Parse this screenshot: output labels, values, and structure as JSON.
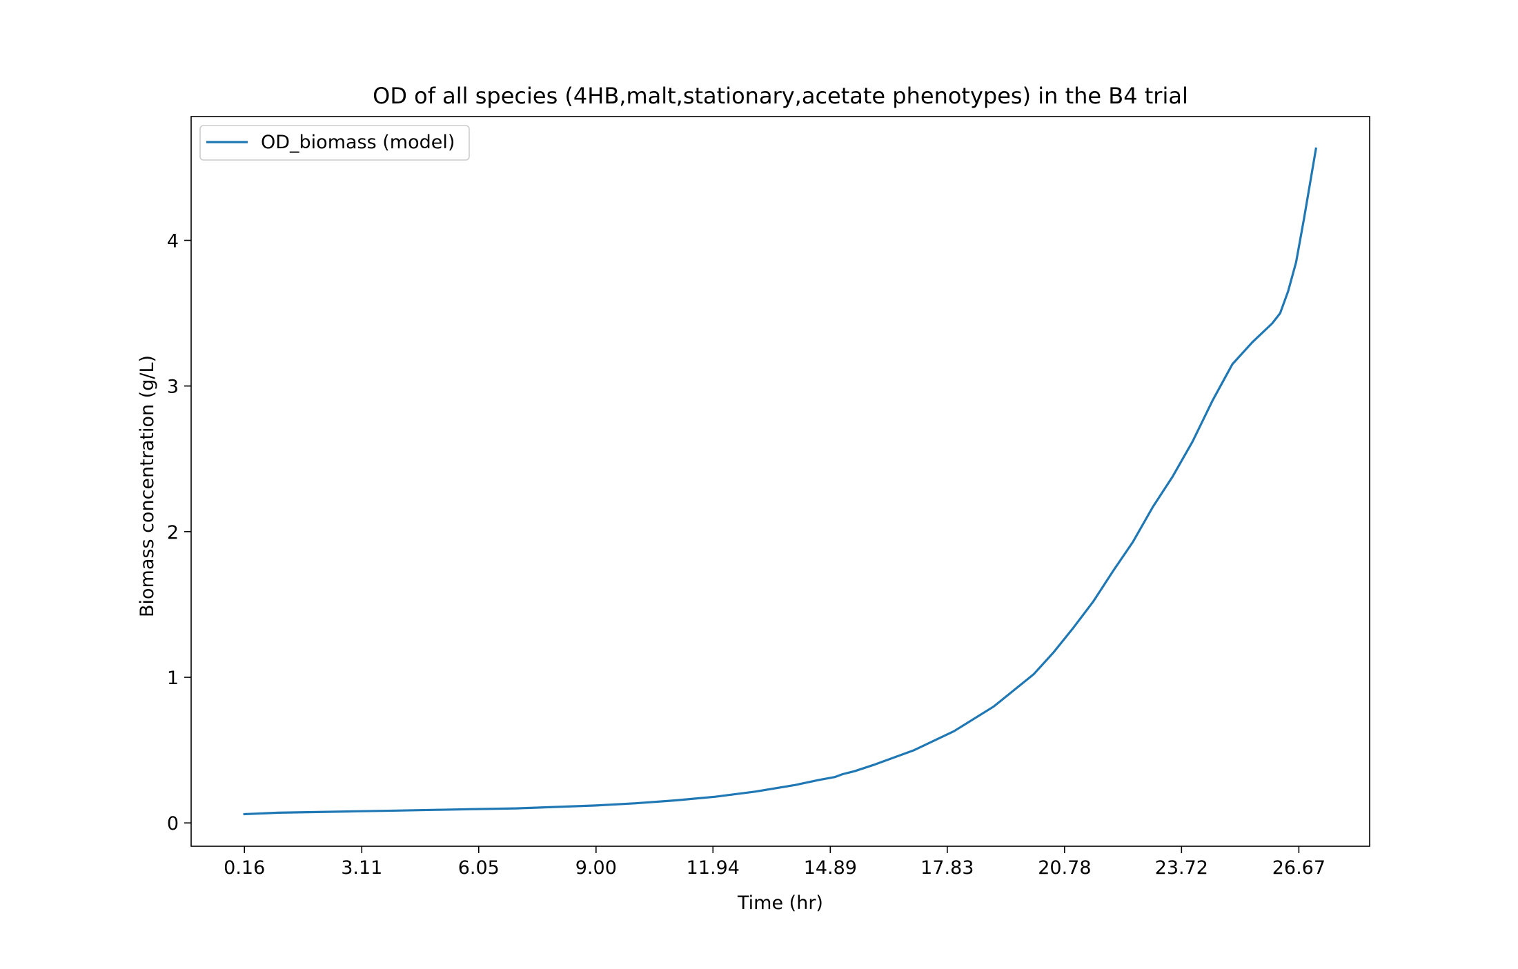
{
  "chart_data": {
    "type": "line",
    "title": "OD of all species (4HB,malt,stationary,acetate phenotypes) in the B4 trial",
    "xlabel": "Time (hr)",
    "ylabel": "Biomass concentration (g/L)",
    "xlim": [
      -1.18,
      28.45
    ],
    "ylim": [
      -0.16,
      4.85
    ],
    "x_ticks": [
      0.16,
      3.11,
      6.05,
      9.0,
      11.94,
      14.89,
      17.83,
      20.78,
      23.72,
      26.67
    ],
    "x_tick_labels": [
      "0.16",
      "3.11",
      "6.05",
      "9.00",
      "11.94",
      "14.89",
      "17.83",
      "20.78",
      "23.72",
      "26.67"
    ],
    "y_ticks": [
      0,
      1,
      2,
      3,
      4
    ],
    "y_tick_labels": [
      "0",
      "1",
      "2",
      "3",
      "4"
    ],
    "grid": false,
    "legend_position": "top-left",
    "series": [
      {
        "name": "OD_biomass (model)",
        "color": "#1f77b4",
        "x": [
          0.16,
          1.0,
          2.0,
          3.0,
          4.0,
          5.0,
          6.0,
          7.0,
          8.0,
          9.0,
          10.0,
          11.0,
          12.0,
          13.0,
          14.0,
          14.6,
          15.0,
          15.2,
          15.5,
          16.0,
          17.0,
          18.0,
          19.0,
          20.0,
          20.5,
          21.0,
          21.5,
          22.0,
          22.5,
          23.0,
          23.5,
          24.0,
          24.5,
          25.0,
          25.5,
          26.0,
          26.2,
          26.4,
          26.6,
          26.8,
          27.1
        ],
        "values": [
          0.06,
          0.07,
          0.075,
          0.08,
          0.085,
          0.09,
          0.095,
          0.1,
          0.11,
          0.12,
          0.135,
          0.155,
          0.18,
          0.215,
          0.26,
          0.295,
          0.315,
          0.335,
          0.355,
          0.4,
          0.5,
          0.63,
          0.8,
          1.02,
          1.17,
          1.34,
          1.52,
          1.73,
          1.93,
          2.17,
          2.38,
          2.62,
          2.9,
          3.15,
          3.3,
          3.43,
          3.5,
          3.65,
          3.85,
          4.15,
          4.63
        ]
      }
    ]
  }
}
